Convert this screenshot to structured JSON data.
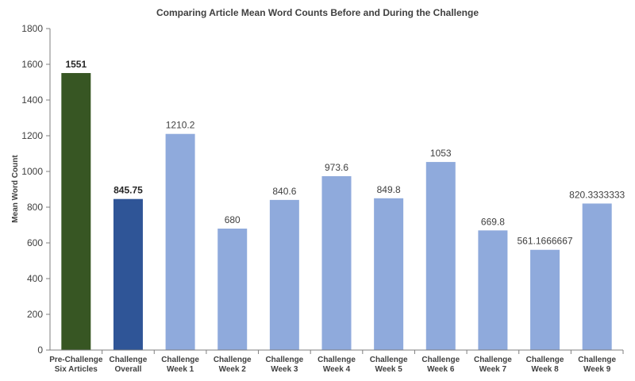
{
  "chart_data": {
    "type": "bar",
    "title": "Comparing Article Mean Word Counts Before and During the Challenge",
    "xlabel": "",
    "ylabel": "Mean Word Count",
    "ylim": [
      0,
      1800
    ],
    "yticks": [
      0,
      200,
      400,
      600,
      800,
      1000,
      1200,
      1400,
      1600,
      1800
    ],
    "grid": false,
    "legend": "none",
    "categories": [
      [
        "Pre-Challenge",
        "Six Articles"
      ],
      [
        "Challenge",
        "Overall"
      ],
      [
        "Challenge",
        "Week 1"
      ],
      [
        "Challenge",
        "Week 2"
      ],
      [
        "Challenge",
        "Week 3"
      ],
      [
        "Challenge",
        "Week 4"
      ],
      [
        "Challenge",
        "Week 5"
      ],
      [
        "Challenge",
        "Week 6"
      ],
      [
        "Challenge",
        "Week 7"
      ],
      [
        "Challenge",
        "Week 8"
      ],
      [
        "Challenge",
        "Week 9"
      ]
    ],
    "values": [
      1551,
      845.75,
      1210.2,
      680,
      840.6,
      973.6,
      849.8,
      1053,
      669.8,
      561.1666667,
      820.3333333
    ],
    "data_labels": [
      "1551",
      "845.75",
      "1210.2",
      "680",
      "840.6",
      "973.6",
      "849.8",
      "1053",
      "669.8",
      "561.1666667",
      "820.3333333"
    ],
    "bold_labels": [
      true,
      true,
      false,
      false,
      false,
      false,
      false,
      false,
      false,
      false,
      false
    ],
    "colors": [
      "#375623",
      "#2F5597",
      "#8FAADC",
      "#8FAADC",
      "#8FAADC",
      "#8FAADC",
      "#8FAADC",
      "#8FAADC",
      "#8FAADC",
      "#8FAADC",
      "#8FAADC"
    ],
    "axis_color": "#7F7F7F"
  }
}
